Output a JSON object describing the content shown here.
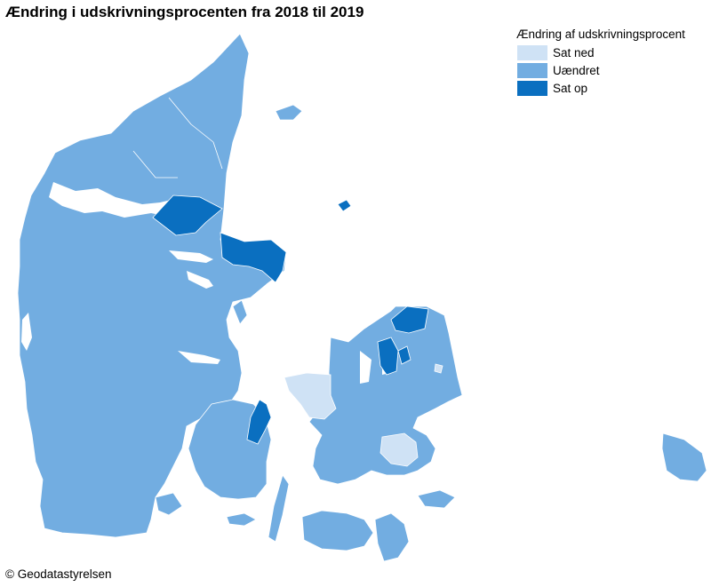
{
  "title": "Ændring i udskrivningsprocenten fra 2018 til 2019",
  "legend": {
    "title": "Ændring af udskrivningsprocent",
    "items": [
      {
        "label": "Sat ned",
        "color": "#cfe2f5"
      },
      {
        "label": "Uændret",
        "color": "#72ade1"
      },
      {
        "label": "Sat op",
        "color": "#0a6fc0"
      }
    ]
  },
  "credit": "© Geodatastyrelsen",
  "colors": {
    "sat_ned": "#cfe2f5",
    "uaendret": "#72ade1",
    "sat_op": "#0a6fc0",
    "border": "#ffffff",
    "background": "#ffffff"
  }
}
